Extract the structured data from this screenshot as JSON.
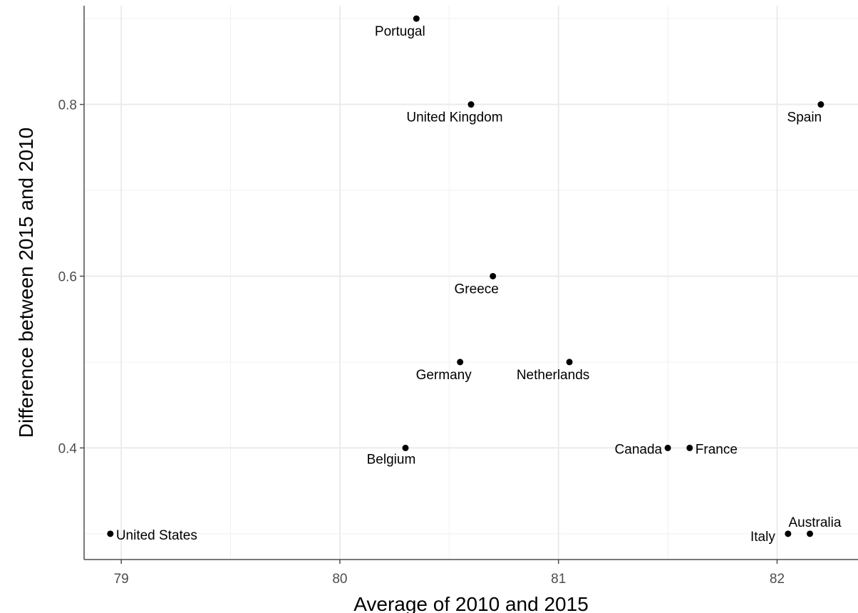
{
  "chart_data": {
    "type": "scatter",
    "xlabel": "Average of 2010 and 2015",
    "ylabel": "Difference between 2015 and 2010",
    "xlim": [
      78.83,
      82.37
    ],
    "ylim": [
      0.27,
      0.915
    ],
    "x_ticks": [
      79,
      80,
      81,
      82
    ],
    "x_tick_labels": [
      "79",
      "80",
      "81",
      "82"
    ],
    "y_ticks": [
      0.4,
      0.6,
      0.8
    ],
    "y_tick_labels": [
      "0.4",
      "0.6",
      "0.8"
    ],
    "grid": true,
    "points": [
      {
        "label": "Portugal",
        "x": 80.35,
        "y": 0.9
      },
      {
        "label": "United Kingdom",
        "x": 80.6,
        "y": 0.8
      },
      {
        "label": "Spain",
        "x": 82.2,
        "y": 0.8
      },
      {
        "label": "Greece",
        "x": 80.7,
        "y": 0.6
      },
      {
        "label": "Germany",
        "x": 80.55,
        "y": 0.5
      },
      {
        "label": "Netherlands",
        "x": 81.05,
        "y": 0.5
      },
      {
        "label": "Belgium",
        "x": 80.3,
        "y": 0.4
      },
      {
        "label": "Canada",
        "x": 81.5,
        "y": 0.4
      },
      {
        "label": "France",
        "x": 81.6,
        "y": 0.4
      },
      {
        "label": "United States",
        "x": 78.95,
        "y": 0.3
      },
      {
        "label": "Italy",
        "x": 82.05,
        "y": 0.3
      },
      {
        "label": "Australia",
        "x": 82.15,
        "y": 0.3
      }
    ]
  }
}
